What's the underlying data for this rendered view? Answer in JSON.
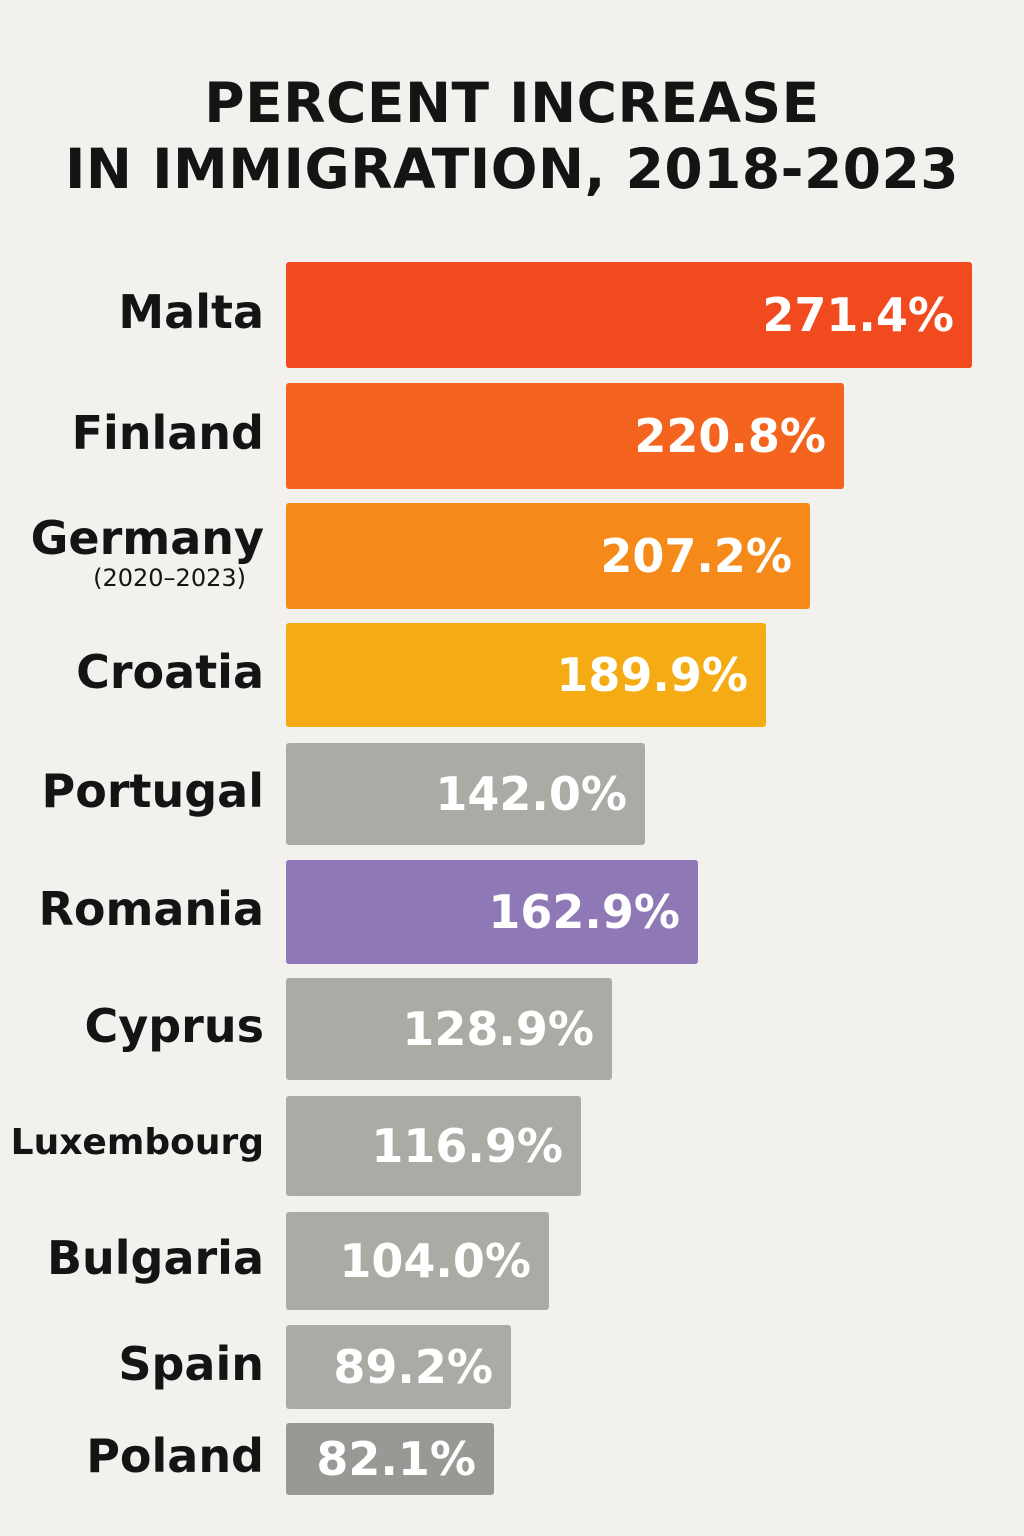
{
  "chart_data": {
    "type": "bar",
    "orientation": "horizontal",
    "title_lines": [
      "PERCENT INCREASE",
      "IN IMMIGRATION, 2018-2023"
    ],
    "xlabel": "",
    "ylabel": "",
    "xlim": [
      0,
      271.4
    ],
    "grid": false,
    "legend": "none",
    "value_suffix": "%",
    "categories": [
      {
        "label": "Malta",
        "value": 271.4,
        "value_label": "271.4%",
        "color": "#f24a1f"
      },
      {
        "label": "Finland",
        "value": 220.8,
        "value_label": "220.8%",
        "color": "#f5641f"
      },
      {
        "label": "Germany",
        "sublabel": "(2020–2023)",
        "value": 207.2,
        "value_label": "207.2%",
        "color": "#f58a1a"
      },
      {
        "label": "Croatia",
        "value": 189.9,
        "value_label": "189.9%",
        "color": "#f5ac14"
      },
      {
        "label": "Portugal",
        "value": 142.0,
        "value_label": "142.0%",
        "color": "#acaaa4"
      },
      {
        "label": "Romania",
        "value": 162.9,
        "value_label": "162.9%",
        "color": "#8e78b6"
      },
      {
        "label": "Cyprus",
        "value": 128.9,
        "value_label": "128.9%",
        "color": "#acaaa4"
      },
      {
        "label": "Luxembourg",
        "value": 116.9,
        "value_label": "116.9%",
        "color": "#acaaa4"
      },
      {
        "label": "Bulgaria",
        "value": 104.0,
        "value_label": "104.0%",
        "color": "#acaaa4"
      },
      {
        "label": "Spain",
        "value": 89.2,
        "value_label": "89.2%",
        "color": "#acaaa4"
      },
      {
        "label": "Poland",
        "value": 82.1,
        "value_label": "82.1%",
        "color": "#999894"
      }
    ]
  }
}
